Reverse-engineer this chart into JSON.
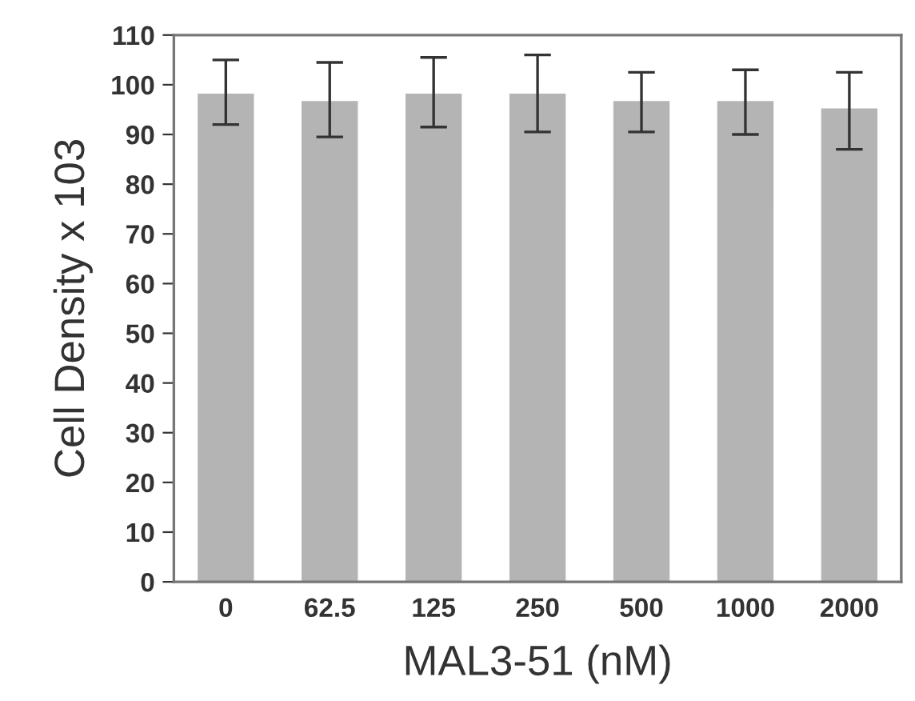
{
  "chart_data": {
    "type": "bar",
    "xlabel": "MAL3-51 (nM)",
    "ylabel": "Cell Density x 103",
    "categories": [
      "0",
      "62.5",
      "125",
      "250",
      "500",
      "1000",
      "2000"
    ],
    "values": [
      98,
      96.5,
      98,
      98,
      96.5,
      96.5,
      95
    ],
    "errors": [
      [
        92,
        105
      ],
      [
        89.5,
        104.5
      ],
      [
        91.5,
        105.5
      ],
      [
        90.5,
        106
      ],
      [
        90.5,
        102.5
      ],
      [
        90,
        103
      ],
      [
        87,
        102.5
      ]
    ],
    "color": "#b4b4b4",
    "ylim": [
      0,
      110
    ],
    "yticks": [
      0,
      10,
      20,
      30,
      40,
      50,
      60,
      70,
      80,
      90,
      100,
      110
    ],
    "grid": false,
    "legend": false
  }
}
